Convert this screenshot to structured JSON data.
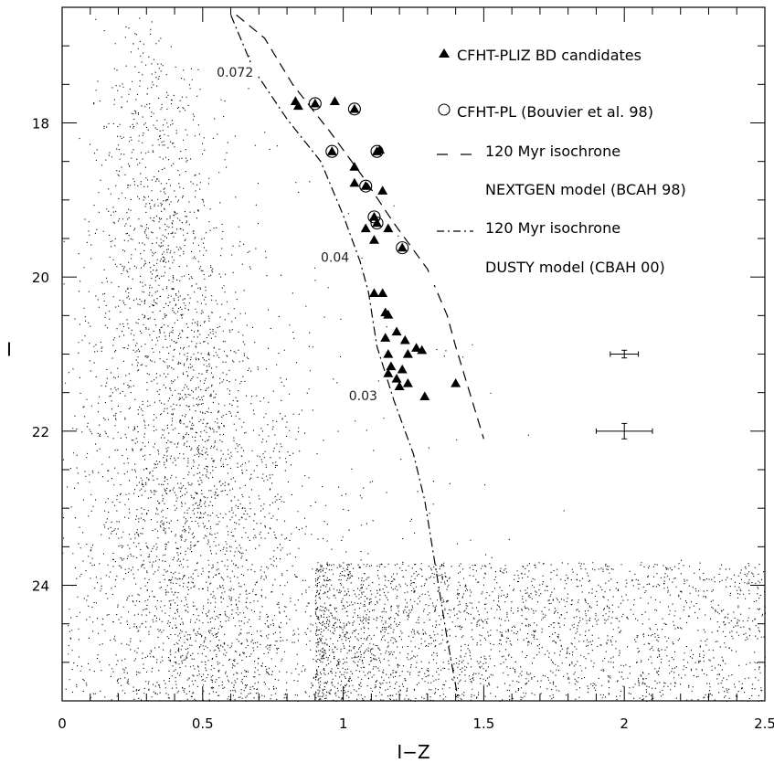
{
  "chart_data": {
    "type": "scatter",
    "xlabel": "I−Z",
    "ylabel": "I",
    "xlim": [
      0,
      2.5
    ],
    "ylim": [
      25.5,
      16.5
    ],
    "y_inverted": true,
    "x_ticks": [
      "0",
      "0.5",
      "1",
      "1.5",
      "2",
      "2.5"
    ],
    "x_tick_values": [
      0,
      0.5,
      1,
      1.5,
      2,
      2.5
    ],
    "y_ticks": [
      "18",
      "20",
      "22",
      "24"
    ],
    "y_tick_values": [
      18,
      20,
      22,
      24
    ],
    "legend": [
      {
        "symbol": "triangle",
        "label": "CFHT-PLIZ BD candidates"
      },
      {
        "symbol": "circle",
        "label": "CFHT-PL (Bouvier et al. 98)"
      },
      {
        "symbol": "dash",
        "label": "120 Myr  isochrone"
      },
      {
        "symbol": "none",
        "label": "NEXTGEN model (BCAH 98)"
      },
      {
        "symbol": "dashdot",
        "label": "120 Myr  isochrone"
      },
      {
        "symbol": "none",
        "label": "DUSTY model (CBAH 00)"
      }
    ],
    "mass_labels": [
      {
        "text": "0.072",
        "x": 0.55,
        "y": 17.4
      },
      {
        "text": "0.04",
        "x": 0.92,
        "y": 19.8
      },
      {
        "text": "0.03",
        "x": 1.02,
        "y": 21.6
      }
    ],
    "nextgen_isochrone": [
      {
        "x": 0.62,
        "y": 16.6
      },
      {
        "x": 0.72,
        "y": 16.9
      },
      {
        "x": 0.82,
        "y": 17.5
      },
      {
        "x": 0.95,
        "y": 18.1
      },
      {
        "x": 1.07,
        "y": 18.7
      },
      {
        "x": 1.18,
        "y": 19.3
      },
      {
        "x": 1.3,
        "y": 19.9
      },
      {
        "x": 1.37,
        "y": 20.5
      },
      {
        "x": 1.4,
        "y": 20.9
      },
      {
        "x": 1.45,
        "y": 21.5
      },
      {
        "x": 1.5,
        "y": 22.1
      }
    ],
    "dusty_isochrone": [
      {
        "x": 0.6,
        "y": 16.6
      },
      {
        "x": 0.68,
        "y": 17.3
      },
      {
        "x": 0.8,
        "y": 17.95
      },
      {
        "x": 0.92,
        "y": 18.5
      },
      {
        "x": 1.0,
        "y": 19.2
      },
      {
        "x": 1.06,
        "y": 19.8
      },
      {
        "x": 1.09,
        "y": 20.2
      },
      {
        "x": 1.12,
        "y": 20.9
      },
      {
        "x": 1.18,
        "y": 21.6
      },
      {
        "x": 1.25,
        "y": 22.3
      },
      {
        "x": 1.29,
        "y": 22.9
      },
      {
        "x": 1.33,
        "y": 23.8
      },
      {
        "x": 1.37,
        "y": 24.7
      },
      {
        "x": 1.41,
        "y": 25.5
      }
    ],
    "bd_candidates": [
      {
        "x": 0.83,
        "y": 17.72
      },
      {
        "x": 0.84,
        "y": 17.78
      },
      {
        "x": 0.9,
        "y": 17.75
      },
      {
        "x": 0.97,
        "y": 17.72
      },
      {
        "x": 1.04,
        "y": 17.82
      },
      {
        "x": 0.96,
        "y": 18.37
      },
      {
        "x": 1.12,
        "y": 18.37
      },
      {
        "x": 1.13,
        "y": 18.35
      },
      {
        "x": 1.04,
        "y": 18.57
      },
      {
        "x": 1.04,
        "y": 18.78
      },
      {
        "x": 1.08,
        "y": 18.82
      },
      {
        "x": 1.14,
        "y": 18.88
      },
      {
        "x": 1.11,
        "y": 19.22
      },
      {
        "x": 1.12,
        "y": 19.3
      },
      {
        "x": 1.08,
        "y": 19.37
      },
      {
        "x": 1.16,
        "y": 19.37
      },
      {
        "x": 1.11,
        "y": 19.52
      },
      {
        "x": 1.21,
        "y": 19.62
      },
      {
        "x": 1.11,
        "y": 20.21
      },
      {
        "x": 1.14,
        "y": 20.21
      },
      {
        "x": 1.15,
        "y": 20.46
      },
      {
        "x": 1.16,
        "y": 20.49
      },
      {
        "x": 1.15,
        "y": 20.79
      },
      {
        "x": 1.19,
        "y": 20.71
      },
      {
        "x": 1.22,
        "y": 20.82
      },
      {
        "x": 1.26,
        "y": 20.92
      },
      {
        "x": 1.28,
        "y": 20.95
      },
      {
        "x": 1.16,
        "y": 21.0
      },
      {
        "x": 1.23,
        "y": 21.0
      },
      {
        "x": 1.17,
        "y": 21.16
      },
      {
        "x": 1.16,
        "y": 21.25
      },
      {
        "x": 1.21,
        "y": 21.2
      },
      {
        "x": 1.19,
        "y": 21.32
      },
      {
        "x": 1.23,
        "y": 21.38
      },
      {
        "x": 1.2,
        "y": 21.42
      },
      {
        "x": 1.4,
        "y": 21.38
      },
      {
        "x": 1.29,
        "y": 21.55
      }
    ],
    "bouvier_circles": [
      {
        "x": 0.9,
        "y": 17.75
      },
      {
        "x": 1.04,
        "y": 17.82
      },
      {
        "x": 0.96,
        "y": 18.37
      },
      {
        "x": 1.12,
        "y": 18.37
      },
      {
        "x": 1.08,
        "y": 18.82
      },
      {
        "x": 1.11,
        "y": 19.22
      },
      {
        "x": 1.12,
        "y": 19.3
      },
      {
        "x": 1.21,
        "y": 19.62
      }
    ],
    "error_bars": [
      {
        "x": 2.0,
        "y": 21.0,
        "dx": 0.05,
        "dy": 0.05
      },
      {
        "x": 2.0,
        "y": 22.0,
        "dx": 0.1,
        "dy": 0.1
      }
    ],
    "field_population": "dense background star field (tens of thousands of points)"
  }
}
